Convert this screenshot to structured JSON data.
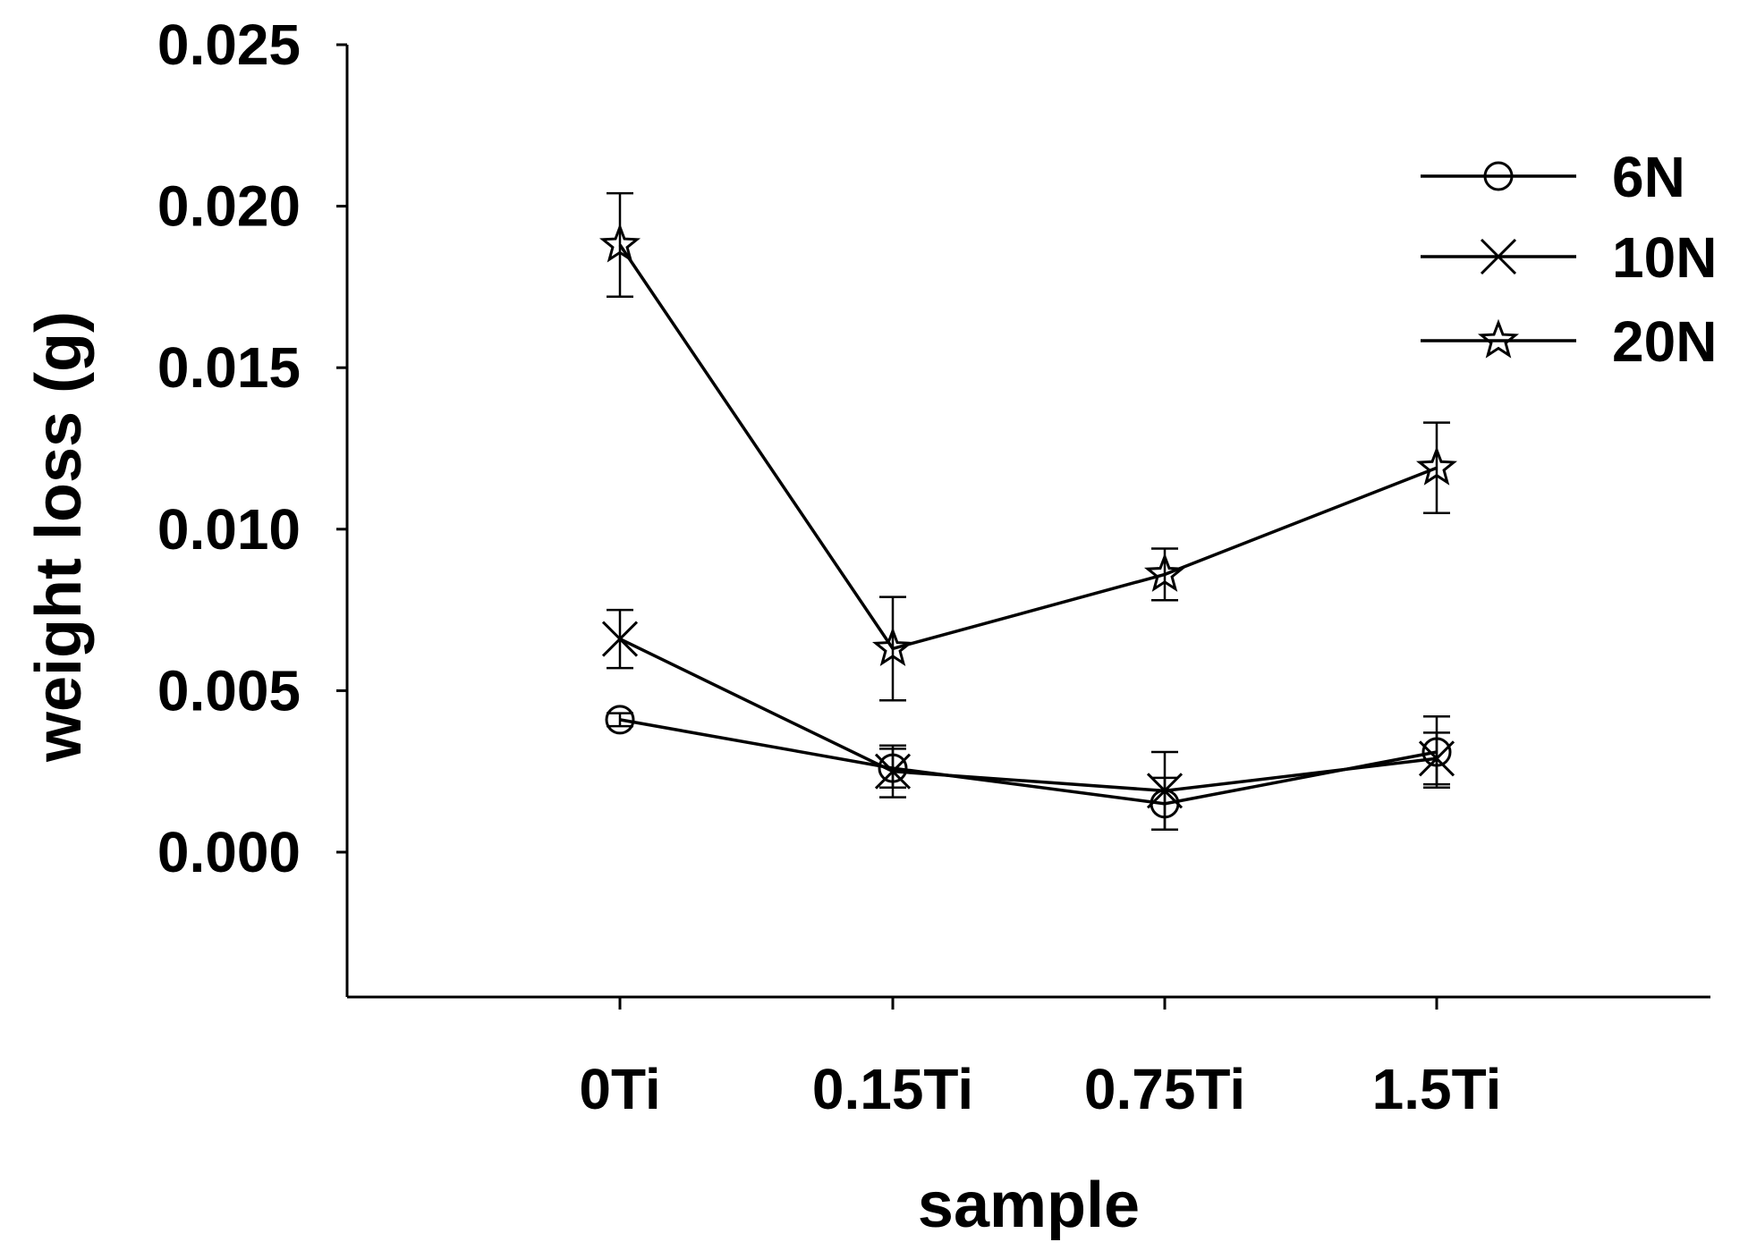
{
  "chart_data": {
    "type": "line",
    "title": "",
    "xlabel": "sample",
    "ylabel": "weight loss (g)",
    "categories": [
      "0Ti",
      "0.15Ti",
      "0.75Ti",
      "1.5Ti"
    ],
    "ylim": [
      -0.0045,
      0.025
    ],
    "yticks": [
      0.0,
      0.005,
      0.01,
      0.015,
      0.02,
      0.025
    ],
    "ytick_labels": [
      "0.000",
      "0.005",
      "0.010",
      "0.015",
      "0.020",
      "0.025"
    ],
    "grid": false,
    "legend": "top-right",
    "series": [
      {
        "name": "6N",
        "marker": "circle",
        "values": [
          0.0041,
          0.0026,
          0.0015,
          0.0031
        ],
        "errors": [
          0.0002,
          0.0006,
          0.0008,
          0.0011
        ]
      },
      {
        "name": "10N",
        "marker": "x",
        "values": [
          0.0066,
          0.0025,
          0.0019,
          0.0029
        ],
        "errors": [
          0.0009,
          0.0008,
          0.0012,
          0.0008
        ]
      },
      {
        "name": "20N",
        "marker": "star",
        "values": [
          0.0188,
          0.0063,
          0.0086,
          0.0119
        ],
        "errors": [
          0.0016,
          0.0016,
          0.0008,
          0.0014
        ]
      }
    ]
  },
  "colors": {
    "line": "#000000",
    "background": "#ffffff"
  }
}
